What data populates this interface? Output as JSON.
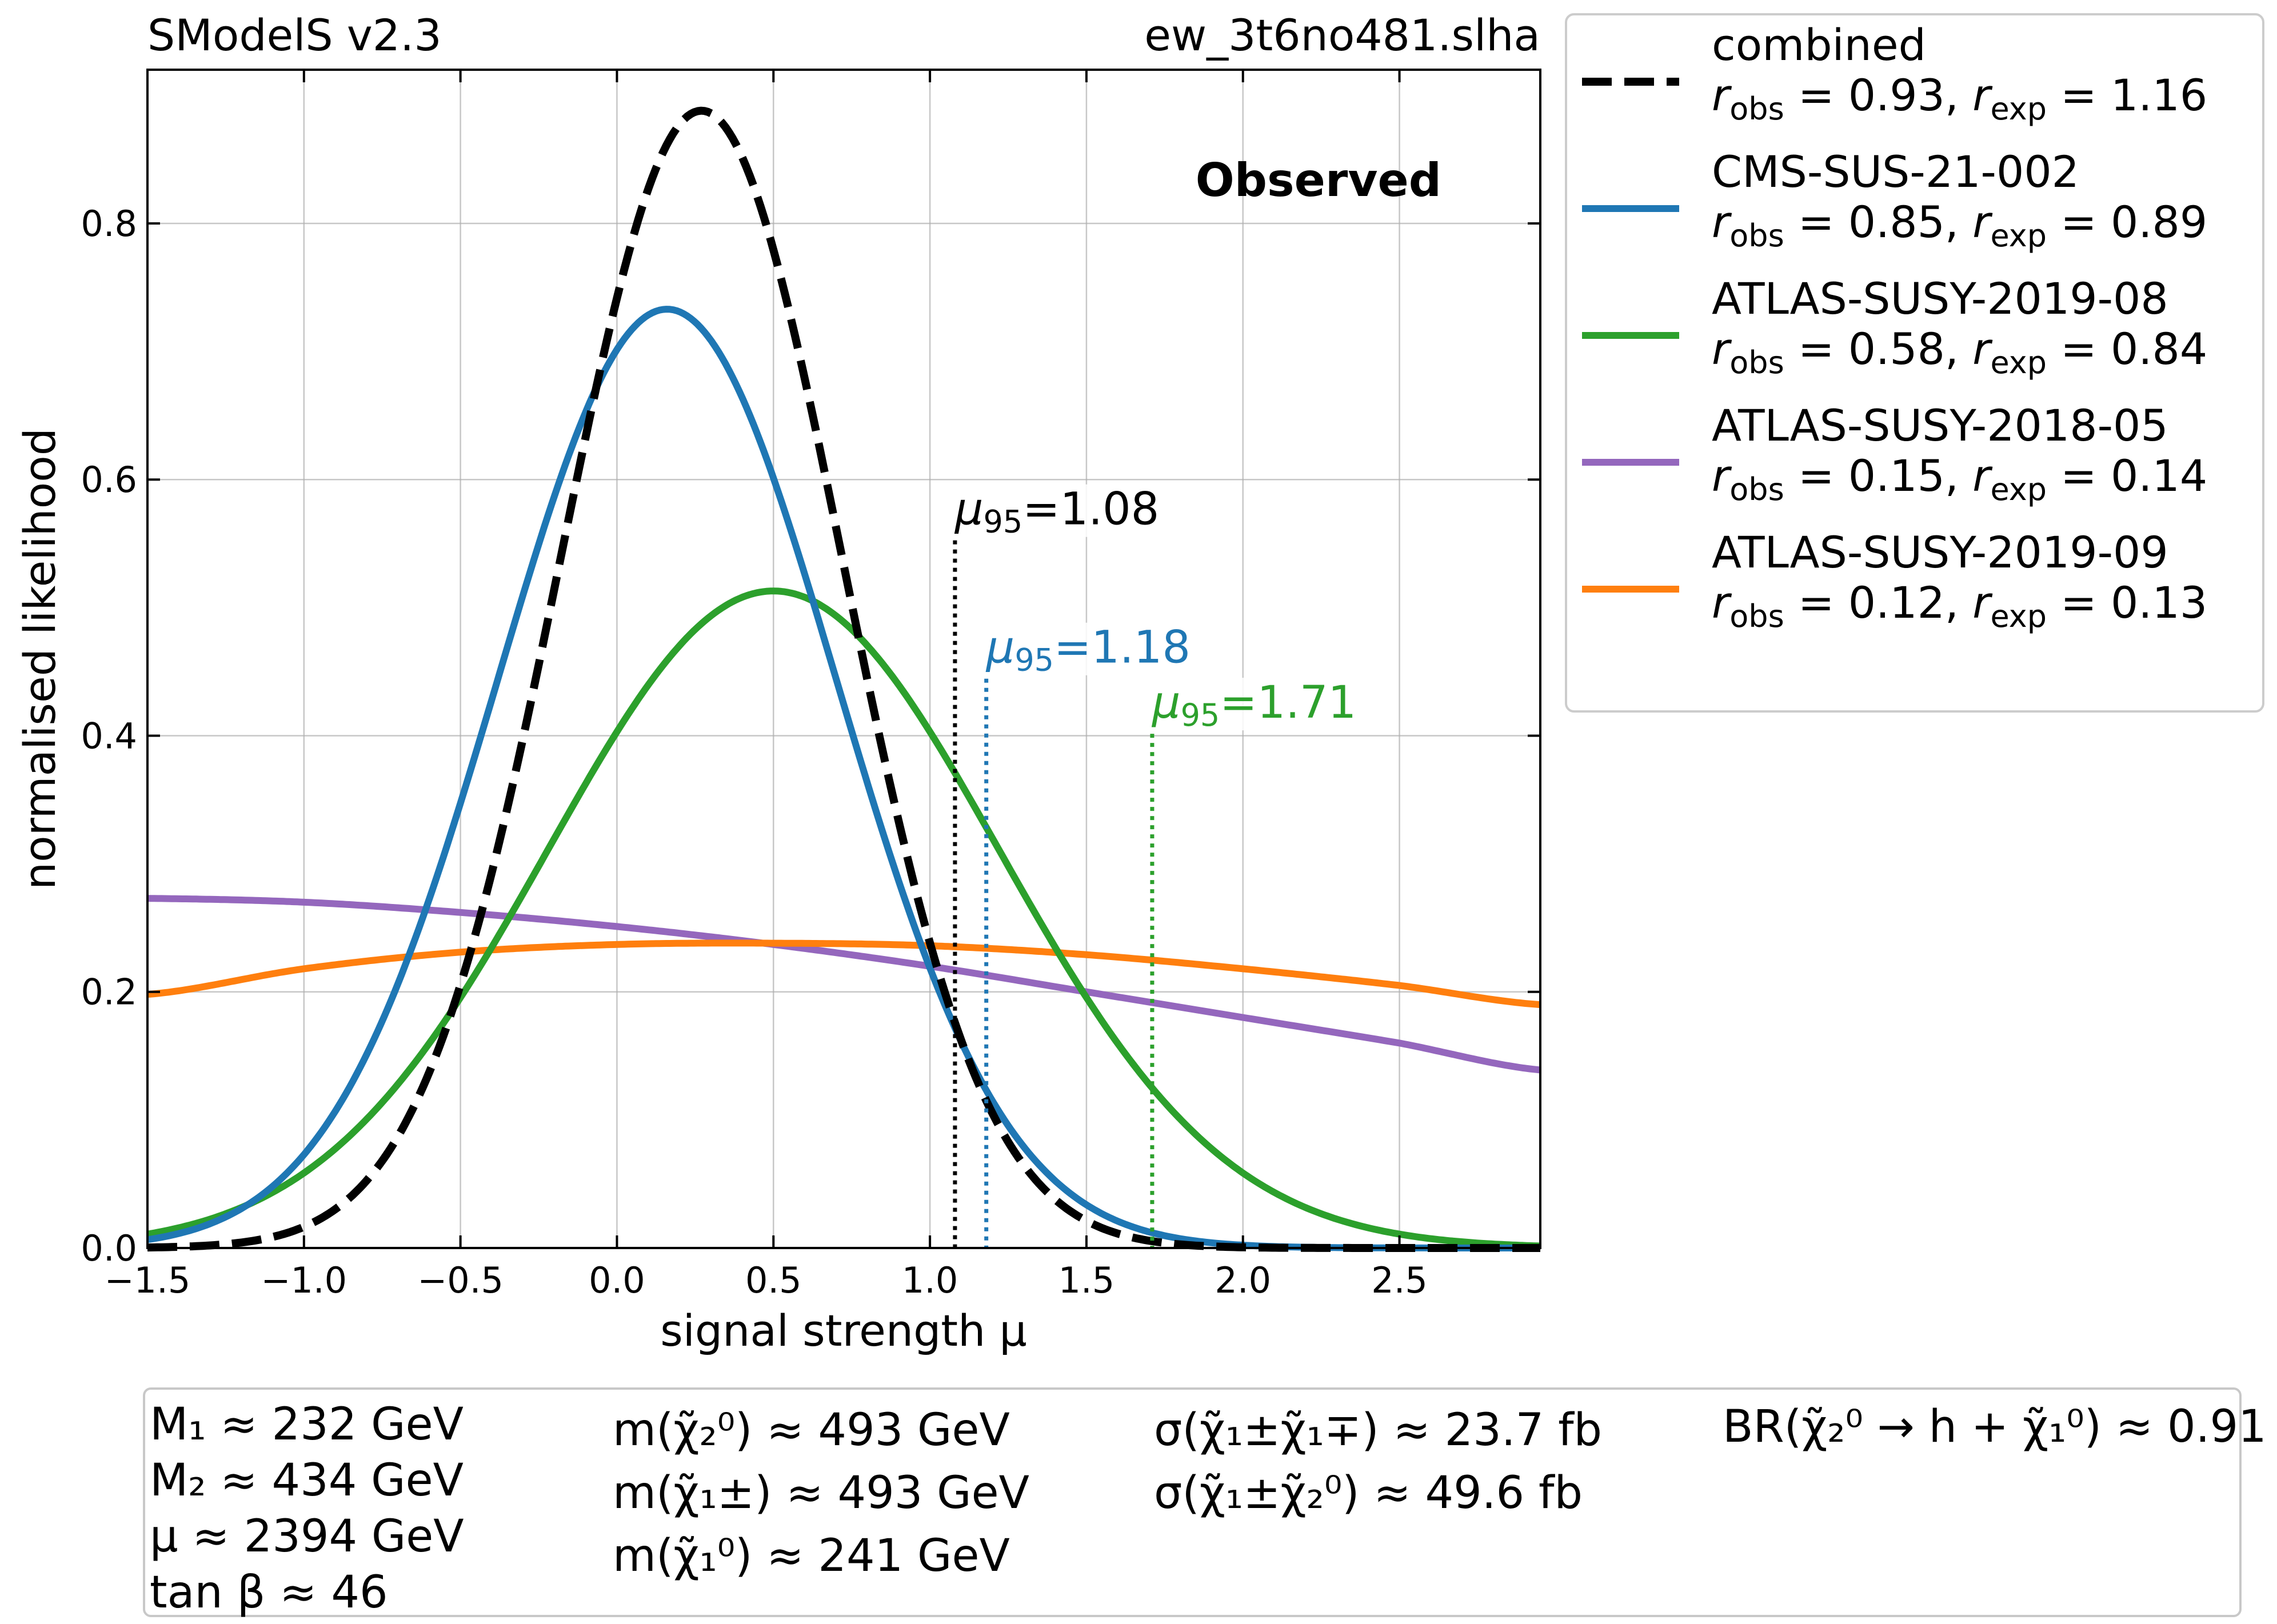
{
  "chart_data": {
    "type": "line",
    "title_left": "SModelS v2.3",
    "title_right": "ew_3t6no481.slha",
    "annotation": "Observed",
    "xlabel": "signal strength μ",
    "ylabel": "normalised likelihood",
    "xlim": [
      -1.5,
      2.95
    ],
    "ylim": [
      0.0,
      0.92
    ],
    "xticks": [
      -1.5,
      -1.0,
      -0.5,
      0.0,
      0.5,
      1.0,
      1.5,
      2.0,
      2.5
    ],
    "xtick_labels": [
      "−1.5",
      "−1.0",
      "−0.5",
      "0.0",
      "0.5",
      "1.0",
      "1.5",
      "2.0",
      "2.5"
    ],
    "yticks": [
      0.0,
      0.2,
      0.4,
      0.6,
      0.8
    ],
    "ytick_labels": [
      "0.0",
      "0.2",
      "0.4",
      "0.6",
      "0.8"
    ],
    "grid": true,
    "legend_position": "outside-top-right",
    "series": [
      {
        "name": "combined",
        "r_obs": "0.93",
        "r_exp": "1.16",
        "color": "#000000",
        "style": "dashed",
        "shape": "gaussian",
        "mean": 0.27,
        "sigma": 0.45,
        "peak": 0.888,
        "mu95": 1.08,
        "mu95_label": "1.08",
        "mu95_label_y": 0.565
      },
      {
        "name": "CMS-SUS-21-002",
        "r_obs": "0.85",
        "r_exp": "0.89",
        "color": "#1f77b4",
        "style": "solid",
        "shape": "gaussian",
        "mean": 0.16,
        "sigma": 0.54,
        "peak": 0.733,
        "mu95": 1.18,
        "mu95_label": "1.18",
        "mu95_label_y": 0.457
      },
      {
        "name": "ATLAS-SUSY-2019-08",
        "r_obs": "0.58",
        "r_exp": "0.84",
        "color": "#2ca02c",
        "style": "solid",
        "shape": "gaussian",
        "mean": 0.5,
        "sigma": 0.72,
        "peak": 0.513,
        "mu95": 1.71,
        "mu95_label": "1.71",
        "mu95_label_y": 0.414
      },
      {
        "name": "ATLAS-SUSY-2018-05",
        "r_obs": "0.15",
        "r_exp": "0.14",
        "color": "#9467bd",
        "style": "solid",
        "shape": "points",
        "x": [
          -1.5,
          -1.0,
          -0.5,
          0.0,
          0.5,
          1.0,
          1.5,
          2.0,
          2.5,
          2.95
        ],
        "y": [
          0.273,
          0.27,
          0.262,
          0.251,
          0.237,
          0.22,
          0.2,
          0.18,
          0.16,
          0.139
        ]
      },
      {
        "name": "ATLAS-SUSY-2019-09",
        "r_obs": "0.12",
        "r_exp": "0.13",
        "color": "#ff7f0e",
        "style": "solid",
        "shape": "points",
        "x": [
          -1.5,
          -1.0,
          -0.5,
          0.0,
          0.5,
          1.0,
          1.5,
          2.0,
          2.5,
          2.95
        ],
        "y": [
          0.198,
          0.218,
          0.231,
          0.237,
          0.238,
          0.236,
          0.229,
          0.218,
          0.205,
          0.19
        ]
      }
    ]
  },
  "params": {
    "col1": [
      "M₁ ≈ 232 GeV",
      "M₂ ≈ 434 GeV",
      "μ ≈ 2394 GeV",
      "tan β ≈ 46"
    ],
    "col2": [
      "m(χ̃₂⁰) ≈ 493 GeV",
      "m(χ̃₁±) ≈ 493 GeV",
      "m(χ̃₁⁰) ≈ 241 GeV"
    ],
    "col3": [
      "σ(χ̃₁±χ̃₁∓) ≈ 23.7 fb",
      "σ(χ̃₁±χ̃₂⁰) ≈ 49.6 fb"
    ],
    "col4": [
      "BR(χ̃₂⁰ → h + χ̃₁⁰) ≈ 0.91"
    ]
  }
}
